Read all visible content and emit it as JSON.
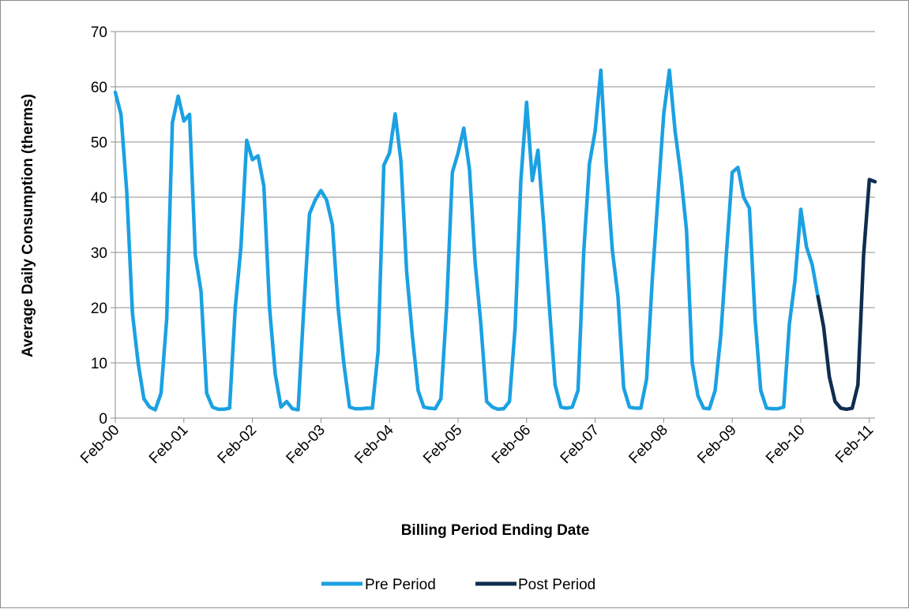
{
  "chart_data": {
    "type": "line",
    "title": "",
    "xlabel": "Billing Period Ending Date",
    "ylabel": "Average Daily Consumption (therms)",
    "ylim": [
      0,
      70
    ],
    "yticks": [
      0,
      10,
      20,
      30,
      40,
      50,
      60,
      70
    ],
    "x_range": [
      "2000-02",
      "2011-03"
    ],
    "xtick_labels": [
      "Feb-00",
      "Feb-01",
      "Feb-02",
      "Feb-03",
      "Feb-04",
      "Feb-05",
      "Feb-06",
      "Feb-07",
      "Feb-08",
      "Feb-09",
      "Feb-10",
      "Feb-11"
    ],
    "grid": "horizontal",
    "legend_position": "bottom",
    "series": [
      {
        "name": "Pre Period",
        "color": "#1ba1e2",
        "x": [
          "2000-02",
          "2000-03",
          "2000-04",
          "2000-05",
          "2000-06",
          "2000-07",
          "2000-08",
          "2000-09",
          "2000-10",
          "2000-11",
          "2000-12",
          "2001-01",
          "2001-02",
          "2001-03",
          "2001-04",
          "2001-05",
          "2001-06",
          "2001-07",
          "2001-08",
          "2001-09",
          "2001-10",
          "2001-11",
          "2001-12",
          "2002-01",
          "2002-02",
          "2002-03",
          "2002-04",
          "2002-05",
          "2002-06",
          "2002-07",
          "2002-08",
          "2002-09",
          "2002-10",
          "2002-11",
          "2002-12",
          "2003-01",
          "2003-02",
          "2003-03",
          "2003-04",
          "2003-05",
          "2003-06",
          "2003-07",
          "2003-08",
          "2003-09",
          "2003-10",
          "2003-11",
          "2003-12",
          "2004-01",
          "2004-02",
          "2004-03",
          "2004-04",
          "2004-05",
          "2004-06",
          "2004-07",
          "2004-08",
          "2004-09",
          "2004-10",
          "2004-11",
          "2004-12",
          "2005-01",
          "2005-02",
          "2005-03",
          "2005-04",
          "2005-05",
          "2005-06",
          "2005-07",
          "2005-08",
          "2005-09",
          "2005-10",
          "2005-11",
          "2005-12",
          "2006-01",
          "2006-02",
          "2006-03",
          "2006-04",
          "2006-05",
          "2006-06",
          "2006-07",
          "2006-08",
          "2006-09",
          "2006-10",
          "2006-11",
          "2006-12",
          "2007-01",
          "2007-02",
          "2007-03",
          "2007-04",
          "2007-05",
          "2007-06",
          "2007-07",
          "2007-08",
          "2007-09",
          "2007-10",
          "2007-11",
          "2007-12",
          "2008-01",
          "2008-02",
          "2008-03",
          "2008-04",
          "2008-05",
          "2008-06",
          "2008-07",
          "2008-08",
          "2008-09",
          "2008-10",
          "2008-11",
          "2008-12",
          "2009-01",
          "2009-02",
          "2009-03",
          "2009-04",
          "2009-05",
          "2009-06",
          "2009-07",
          "2009-08",
          "2009-09",
          "2009-10",
          "2009-11",
          "2009-12",
          "2010-01",
          "2010-02",
          "2010-03",
          "2010-04",
          "2010-05"
        ],
        "values": [
          59,
          55,
          41,
          19,
          10,
          3.5,
          2,
          1.5,
          4.5,
          18,
          53.5,
          58.3,
          53.8,
          55,
          29.5,
          23,
          4.5,
          2,
          1.6,
          1.6,
          1.8,
          20,
          31,
          50.3,
          46.8,
          47.5,
          42,
          20,
          8,
          2,
          3,
          1.7,
          1.5,
          20,
          37,
          39.5,
          41.2,
          39.5,
          35,
          20,
          10,
          2,
          1.7,
          1.7,
          1.8,
          1.8,
          12,
          45.8,
          48,
          55.1,
          46.5,
          26.5,
          15,
          5,
          2,
          1.8,
          1.7,
          3.5,
          20,
          44.5,
          48,
          52.5,
          45,
          28,
          17,
          3,
          2,
          1.6,
          1.7,
          3,
          16.5,
          43,
          57.2,
          43,
          48.5,
          35,
          20,
          6,
          2,
          1.8,
          2,
          5,
          30,
          46,
          52,
          63,
          45,
          30.5,
          22,
          5.5,
          2,
          1.8,
          1.8,
          7,
          25,
          40,
          55,
          63,
          52,
          44,
          34,
          10,
          4,
          1.8,
          1.7,
          5,
          15,
          30,
          44.5,
          45.4,
          40,
          38,
          18,
          5,
          1.8,
          1.7,
          1.7,
          2,
          17,
          25,
          37.8,
          31,
          27.8,
          22
        ]
      },
      {
        "name": "Post Period",
        "color": "#0f2d4f",
        "x": [
          "2010-05",
          "2010-06",
          "2010-07",
          "2010-08",
          "2010-09",
          "2010-10",
          "2010-11",
          "2010-12",
          "2011-01",
          "2011-02",
          "2011-03"
        ],
        "values": [
          22,
          16.5,
          7.5,
          3,
          1.8,
          1.6,
          1.8,
          6,
          29.5,
          43.2,
          42.8
        ]
      }
    ]
  }
}
